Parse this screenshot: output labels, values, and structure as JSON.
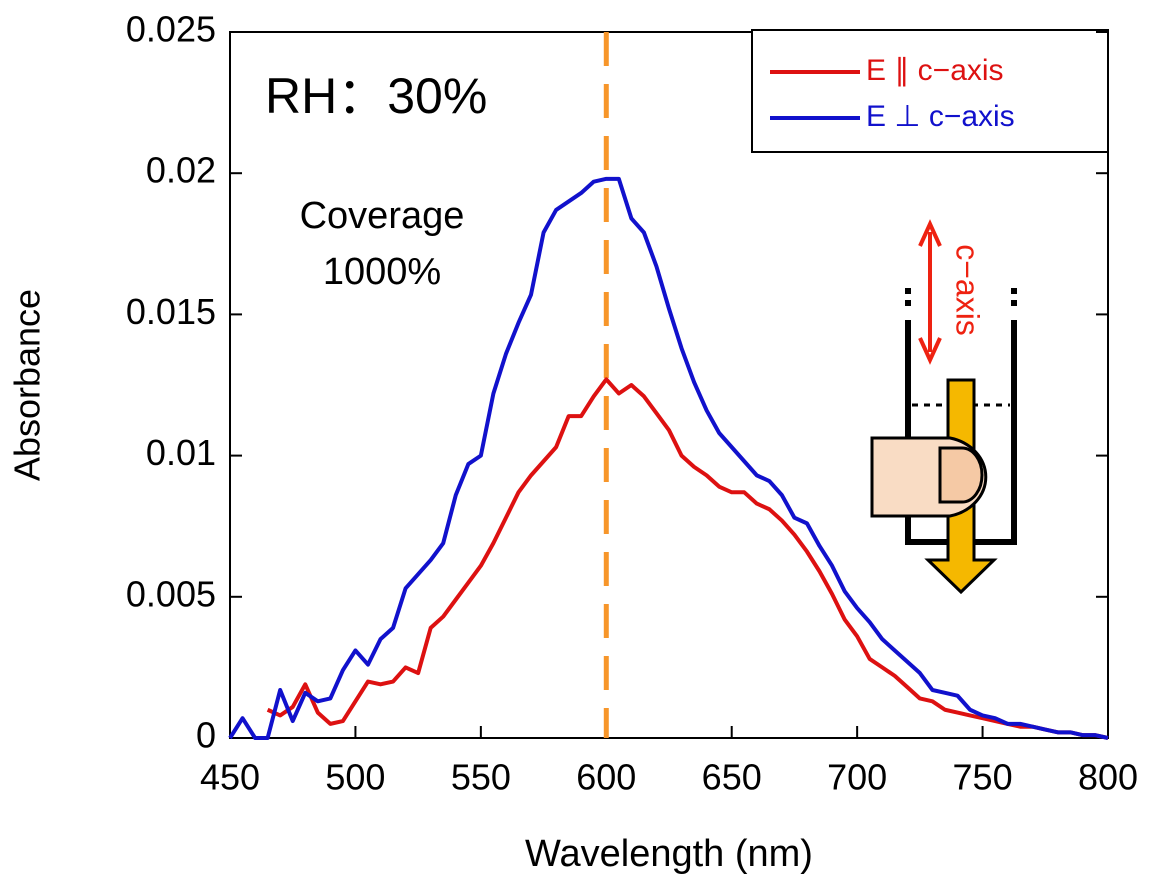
{
  "chart_data": {
    "type": "line",
    "xlabel": "Wavelength (nm)",
    "ylabel": "Absorbance",
    "x": [
      450,
      455,
      460,
      465,
      470,
      475,
      480,
      485,
      490,
      495,
      500,
      505,
      510,
      515,
      520,
      525,
      530,
      535,
      540,
      545,
      550,
      555,
      560,
      565,
      570,
      575,
      580,
      585,
      590,
      595,
      600,
      605,
      610,
      615,
      620,
      625,
      630,
      635,
      640,
      645,
      650,
      655,
      660,
      665,
      670,
      675,
      680,
      685,
      690,
      695,
      700,
      705,
      710,
      715,
      720,
      725,
      730,
      735,
      740,
      745,
      750,
      755,
      760,
      765,
      770,
      775,
      780,
      785,
      790,
      795,
      800
    ],
    "series": [
      {
        "name": "E ∥ c−axis",
        "color": "#dd1111",
        "values": [
          null,
          null,
          null,
          0.001,
          0.0008,
          0.0011,
          0.0019,
          0.0009,
          0.0005,
          0.0006,
          0.0013,
          0.002,
          0.0019,
          0.002,
          0.0025,
          0.0023,
          0.0039,
          0.0043,
          0.0049,
          0.0055,
          0.0061,
          0.0069,
          0.0078,
          0.0087,
          0.0093,
          0.0098,
          0.0103,
          0.0114,
          0.0114,
          0.0121,
          0.0127,
          0.0122,
          0.0125,
          0.0121,
          0.0115,
          0.0109,
          0.01,
          0.0096,
          0.0093,
          0.0089,
          0.0087,
          0.0087,
          0.0083,
          0.0081,
          0.0077,
          0.0072,
          0.0066,
          0.0059,
          0.0051,
          0.0042,
          0.0036,
          0.0028,
          0.0025,
          0.0022,
          0.0018,
          0.0014,
          0.0013,
          0.001,
          0.0009,
          0.0008,
          0.0007,
          0.0006,
          0.0005,
          0.0004,
          0.0004,
          0.0003,
          0.0002,
          0.0002,
          0.0001,
          0.0001,
          0
        ]
      },
      {
        "name": "E ⊥ c−axis",
        "color": "#1111cc",
        "values": [
          0,
          0.0007,
          0,
          0,
          0.0017,
          0.0006,
          0.0016,
          0.0013,
          0.0014,
          0.0024,
          0.0031,
          0.0026,
          0.0035,
          0.0039,
          0.0053,
          0.0058,
          0.0063,
          0.0069,
          0.0086,
          0.0097,
          0.01,
          0.0122,
          0.0136,
          0.0147,
          0.0157,
          0.0179,
          0.0187,
          0.019,
          0.0193,
          0.0197,
          0.0198,
          0.0198,
          0.0184,
          0.0179,
          0.0167,
          0.0152,
          0.0138,
          0.0126,
          0.0116,
          0.0108,
          0.0103,
          0.0098,
          0.0093,
          0.0091,
          0.0086,
          0.0078,
          0.0076,
          0.0068,
          0.0061,
          0.0052,
          0.0046,
          0.0041,
          0.0035,
          0.0031,
          0.0027,
          0.0023,
          0.0017,
          0.0016,
          0.0015,
          0.001,
          0.0008,
          0.0007,
          0.0005,
          0.0005,
          0.0004,
          0.0003,
          0.0002,
          0.0002,
          0.0001,
          0.0001,
          0
        ]
      }
    ],
    "xlim": [
      450,
      800
    ],
    "xticks": [
      450,
      500,
      550,
      600,
      650,
      700,
      750,
      800
    ],
    "ylim": [
      0,
      0.025
    ],
    "yticks": [
      0,
      0.005,
      0.01,
      0.015,
      0.02,
      0.025
    ],
    "vline": {
      "x": 600,
      "color": "#f7962a"
    },
    "annotations": [
      "RH：30%",
      "Coverage",
      "1000%"
    ],
    "inset_label": "c−axis",
    "legend": "upper right"
  }
}
